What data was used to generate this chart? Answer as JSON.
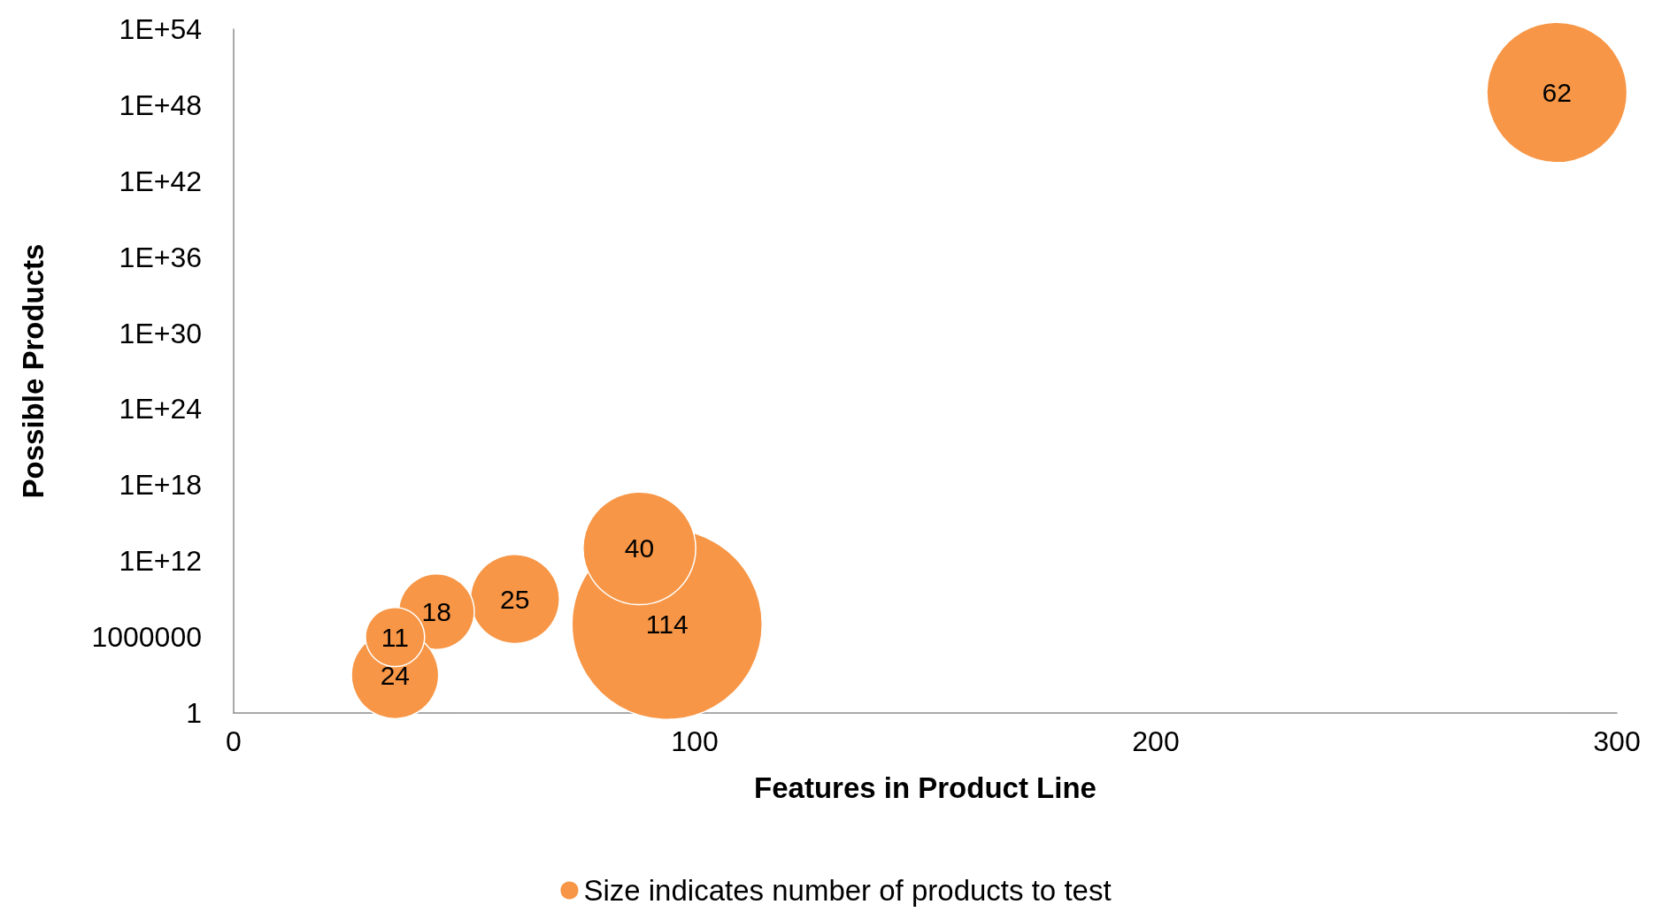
{
  "chart_data": {
    "type": "bubble",
    "xlabel": "Features in Product Line",
    "ylabel": "Possible Products",
    "x": [
      287,
      94,
      88,
      61,
      44,
      35,
      35
    ],
    "series": [
      {
        "name": "Size indicates number of products to test",
        "color": "#f79646",
        "values": [
          1e+49,
          10000000.0,
          10000000000000.0,
          1000000000.0,
          100000000.0,
          1000.0,
          1000000.0
        ],
        "sizes": [
          62,
          114,
          40,
          25,
          18,
          24,
          11
        ],
        "value_labels": [
          "62",
          "114",
          "40",
          "25",
          "18",
          "24",
          "11"
        ]
      }
    ],
    "xlim": [
      0,
      300
    ],
    "xticks": [
      0,
      100,
      200,
      300
    ],
    "ylim": [
      1,
      1e+54
    ],
    "yticks": [
      1,
      1000000,
      {
        "value": 1000000000000.0,
        "label": "1E+12"
      },
      {
        "value": 1e+18,
        "label": "1E+18"
      },
      {
        "value": 1e+24,
        "label": "1E+24"
      },
      {
        "value": 1e+30,
        "label": "1E+30"
      },
      {
        "value": 1e+36,
        "label": "1E+36"
      },
      {
        "value": 1e+42,
        "label": "1E+42"
      },
      {
        "value": 1e+48,
        "label": "1E+48"
      },
      {
        "value": 1e+54,
        "label": "1E+54"
      }
    ],
    "log": "y",
    "grid": false,
    "legend": "bottom"
  }
}
